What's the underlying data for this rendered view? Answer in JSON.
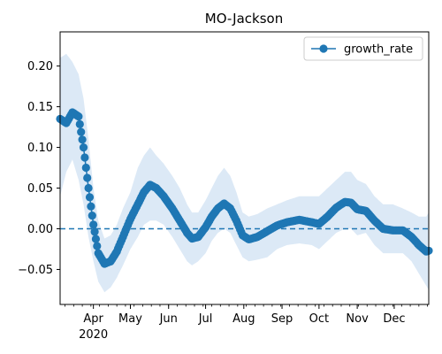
{
  "chart_data": {
    "type": "line",
    "title": "MO-Jackson",
    "xlabel": "",
    "ylabel": "",
    "x_start": "2020-03-05",
    "x_end": "2020-12-29",
    "ylim": [
      -0.093,
      0.242
    ],
    "y_ticks": [
      -0.05,
      0.0,
      0.05,
      0.1,
      0.15,
      0.2
    ],
    "y_tick_labels": [
      "−0.05",
      "0.00",
      "0.05",
      "0.10",
      "0.15",
      "0.20"
    ],
    "x_ticks": [
      {
        "date": "2020-04-01",
        "label": "Apr"
      },
      {
        "date": "2020-05-01",
        "label": "May"
      },
      {
        "date": "2020-06-01",
        "label": "Jun"
      },
      {
        "date": "2020-07-01",
        "label": "Jul"
      },
      {
        "date": "2020-08-01",
        "label": "Aug"
      },
      {
        "date": "2020-09-01",
        "label": "Sep"
      },
      {
        "date": "2020-10-01",
        "label": "Oct"
      },
      {
        "date": "2020-11-01",
        "label": "Nov"
      },
      {
        "date": "2020-12-01",
        "label": "Dec"
      }
    ],
    "x_year_label": "2020",
    "reference_line": {
      "y": 0.0,
      "style": "dashed"
    },
    "legend": {
      "position": "top-right",
      "entries": [
        "growth_rate"
      ]
    },
    "series": [
      {
        "name": "growth_rate",
        "color": "#1f77b4",
        "band_color": "#dce9f6",
        "points": [
          {
            "x": "2020-03-05",
            "y": 0.135,
            "lo": 0.04,
            "hi": 0.21
          },
          {
            "x": "2020-03-10",
            "y": 0.13,
            "lo": 0.07,
            "hi": 0.215
          },
          {
            "x": "2020-03-15",
            "y": 0.143,
            "lo": 0.085,
            "hi": 0.205
          },
          {
            "x": "2020-03-20",
            "y": 0.138,
            "lo": 0.06,
            "hi": 0.19
          },
          {
            "x": "2020-03-24",
            "y": 0.1,
            "lo": 0.03,
            "hi": 0.16
          },
          {
            "x": "2020-03-28",
            "y": 0.05,
            "lo": -0.01,
            "hi": 0.11
          },
          {
            "x": "2020-04-01",
            "y": 0.005,
            "lo": -0.04,
            "hi": 0.05
          },
          {
            "x": "2020-04-05",
            "y": -0.03,
            "lo": -0.065,
            "hi": 0.01
          },
          {
            "x": "2020-04-10",
            "y": -0.043,
            "lo": -0.078,
            "hi": -0.012
          },
          {
            "x": "2020-04-15",
            "y": -0.04,
            "lo": -0.072,
            "hi": -0.008
          },
          {
            "x": "2020-04-20",
            "y": -0.028,
            "lo": -0.06,
            "hi": 0.005
          },
          {
            "x": "2020-04-25",
            "y": -0.01,
            "lo": -0.045,
            "hi": 0.025
          },
          {
            "x": "2020-05-01",
            "y": 0.012,
            "lo": -0.025,
            "hi": 0.045
          },
          {
            "x": "2020-05-07",
            "y": 0.03,
            "lo": -0.01,
            "hi": 0.075
          },
          {
            "x": "2020-05-12",
            "y": 0.045,
            "lo": 0.005,
            "hi": 0.09
          },
          {
            "x": "2020-05-17",
            "y": 0.054,
            "lo": 0.01,
            "hi": 0.1
          },
          {
            "x": "2020-05-22",
            "y": 0.05,
            "lo": 0.01,
            "hi": 0.09
          },
          {
            "x": "2020-05-28",
            "y": 0.04,
            "lo": 0.005,
            "hi": 0.08
          },
          {
            "x": "2020-06-04",
            "y": 0.025,
            "lo": -0.01,
            "hi": 0.065
          },
          {
            "x": "2020-06-10",
            "y": 0.01,
            "lo": -0.025,
            "hi": 0.05
          },
          {
            "x": "2020-06-16",
            "y": -0.005,
            "lo": -0.04,
            "hi": 0.03
          },
          {
            "x": "2020-06-20",
            "y": -0.012,
            "lo": -0.045,
            "hi": 0.02
          },
          {
            "x": "2020-06-25",
            "y": -0.01,
            "lo": -0.04,
            "hi": 0.02
          },
          {
            "x": "2020-07-01",
            "y": 0.002,
            "lo": -0.03,
            "hi": 0.035
          },
          {
            "x": "2020-07-06",
            "y": 0.015,
            "lo": -0.015,
            "hi": 0.05
          },
          {
            "x": "2020-07-11",
            "y": 0.025,
            "lo": -0.005,
            "hi": 0.065
          },
          {
            "x": "2020-07-16",
            "y": 0.031,
            "lo": 0.0,
            "hi": 0.075
          },
          {
            "x": "2020-07-21",
            "y": 0.025,
            "lo": -0.005,
            "hi": 0.065
          },
          {
            "x": "2020-07-26",
            "y": 0.01,
            "lo": -0.02,
            "hi": 0.045
          },
          {
            "x": "2020-07-31",
            "y": -0.008,
            "lo": -0.035,
            "hi": 0.02
          },
          {
            "x": "2020-08-05",
            "y": -0.013,
            "lo": -0.04,
            "hi": 0.015
          },
          {
            "x": "2020-08-12",
            "y": -0.01,
            "lo": -0.038,
            "hi": 0.018
          },
          {
            "x": "2020-08-20",
            "y": -0.003,
            "lo": -0.035,
            "hi": 0.025
          },
          {
            "x": "2020-08-28",
            "y": 0.004,
            "lo": -0.025,
            "hi": 0.03
          },
          {
            "x": "2020-09-05",
            "y": 0.008,
            "lo": -0.02,
            "hi": 0.035
          },
          {
            "x": "2020-09-15",
            "y": 0.011,
            "lo": -0.018,
            "hi": 0.04
          },
          {
            "x": "2020-09-25",
            "y": 0.008,
            "lo": -0.02,
            "hi": 0.04
          },
          {
            "x": "2020-10-01",
            "y": 0.006,
            "lo": -0.025,
            "hi": 0.04
          },
          {
            "x": "2020-10-08",
            "y": 0.015,
            "lo": -0.015,
            "hi": 0.05
          },
          {
            "x": "2020-10-15",
            "y": 0.026,
            "lo": -0.005,
            "hi": 0.06
          },
          {
            "x": "2020-10-22",
            "y": 0.033,
            "lo": 0.0,
            "hi": 0.07
          },
          {
            "x": "2020-10-27",
            "y": 0.032,
            "lo": 0.0,
            "hi": 0.07
          },
          {
            "x": "2020-11-01",
            "y": 0.024,
            "lo": -0.008,
            "hi": 0.06
          },
          {
            "x": "2020-11-08",
            "y": 0.022,
            "lo": -0.005,
            "hi": 0.055
          },
          {
            "x": "2020-11-15",
            "y": 0.01,
            "lo": -0.02,
            "hi": 0.04
          },
          {
            "x": "2020-11-22",
            "y": 0.0,
            "lo": -0.03,
            "hi": 0.03
          },
          {
            "x": "2020-11-30",
            "y": -0.002,
            "lo": -0.03,
            "hi": 0.03
          },
          {
            "x": "2020-12-08",
            "y": -0.002,
            "lo": -0.03,
            "hi": 0.025
          },
          {
            "x": "2020-12-15",
            "y": -0.01,
            "lo": -0.04,
            "hi": 0.02
          },
          {
            "x": "2020-12-21",
            "y": -0.02,
            "lo": -0.055,
            "hi": 0.015
          },
          {
            "x": "2020-12-27",
            "y": -0.028,
            "lo": -0.07,
            "hi": 0.015
          },
          {
            "x": "2020-12-29",
            "y": -0.027,
            "lo": -0.075,
            "hi": 0.02
          }
        ]
      }
    ]
  }
}
